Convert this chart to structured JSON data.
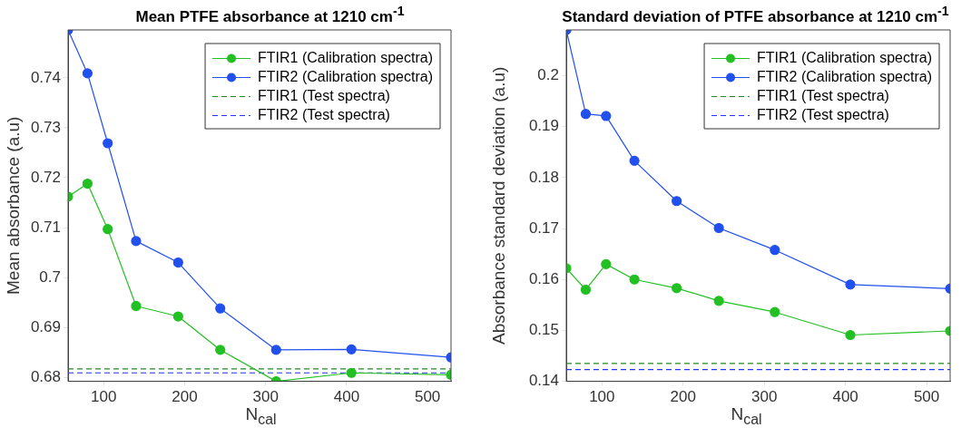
{
  "chart_data": [
    {
      "type": "line",
      "title": "Mean PTFE absorbance at 1210 cm$^{-1}$",
      "xlabel": "N$_{cal}$",
      "ylabel": "Mean absorbance (a.u)",
      "x": [
        56,
        80,
        105,
        140,
        192,
        244,
        313,
        406,
        529
      ],
      "series": [
        {
          "name": "FTIR1 (Calibration spectra)",
          "color": "#22c022",
          "values": [
            0.7162,
            0.7188,
            0.7097,
            0.6943,
            0.6922,
            0.6855,
            0.6792,
            0.6809,
            0.6805
          ]
        },
        {
          "name": "FTIR2 (Calibration spectra)",
          "color": "#2250ee",
          "values": [
            0.7496,
            0.7409,
            0.7269,
            0.7073,
            0.703,
            0.6938,
            0.6855,
            0.6856,
            0.684
          ]
        }
      ],
      "ref_lines": [
        {
          "axis": "y",
          "value": 0.6817,
          "label": "FTIR1 (Test spectra)",
          "color": "#228822",
          "line_style": "dashed"
        },
        {
          "axis": "y",
          "value": 0.6809,
          "label": "FTIR2 (Test spectra)",
          "color": "#2233ff",
          "line_style": "dashed"
        }
      ],
      "xlim": [
        56,
        529
      ],
      "xticks": [
        100,
        200,
        300,
        400,
        500
      ],
      "ylim": [
        0.6792,
        0.7496
      ],
      "yticks": [
        0.68,
        0.69,
        0.7,
        0.71,
        0.72,
        0.73,
        0.74
      ],
      "grid": false,
      "legend": "top right",
      "marker": "circle",
      "line_style": "solid"
    },
    {
      "type": "line",
      "title": "Standard deviation of PTFE absorbance at 1210 cm$^{-1}$",
      "xlabel": "N$_{cal}$",
      "ylabel": "Absorbance standard deviation (a.u)",
      "x": [
        56,
        80,
        105,
        140,
        192,
        244,
        313,
        406,
        529
      ],
      "series": [
        {
          "name": "FTIR1 (Calibration spectra)",
          "color": "#22c022",
          "values": [
            0.1622,
            0.158,
            0.163,
            0.16,
            0.1583,
            0.1558,
            0.1536,
            0.1491,
            0.1499
          ]
        },
        {
          "name": "FTIR2 (Calibration spectra)",
          "color": "#2250ee",
          "values": [
            0.209,
            0.1925,
            0.1921,
            0.1833,
            0.1754,
            0.1701,
            0.1658,
            0.159,
            0.1582
          ]
        }
      ],
      "ref_lines": [
        {
          "axis": "y",
          "value": 0.1435,
          "label": "FTIR1 (Test spectra)",
          "color": "#228822",
          "line_style": "dashed"
        },
        {
          "axis": "y",
          "value": 0.1423,
          "label": "FTIR2 (Test spectra)",
          "color": "#2233ff",
          "line_style": "dashed"
        }
      ],
      "xlim": [
        56,
        529
      ],
      "xticks": [
        100,
        200,
        300,
        400,
        500
      ],
      "ylim": [
        0.14,
        0.209
      ],
      "yticks": [
        0.14,
        0.15,
        0.16,
        0.17,
        0.18,
        0.19,
        0.2
      ],
      "grid": false,
      "legend": "top right",
      "marker": "circle",
      "line_style": "solid"
    }
  ]
}
